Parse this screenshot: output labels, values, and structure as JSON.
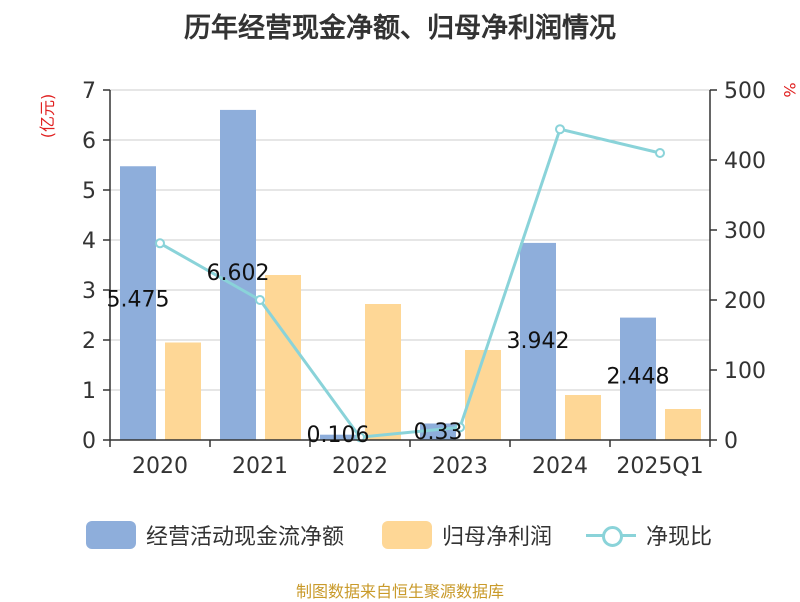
{
  "title": "历年经营现金净额、归母净利润情况",
  "source": "制图数据来自恒生聚源数据库",
  "legend": {
    "cash_label": "经营活动现金流净额",
    "profit_label": "归母净利润",
    "ratio_label": "净现比"
  },
  "colors": {
    "cash": "#8eaedb",
    "profit": "#fed796",
    "ratio": "#8ad3d9",
    "axis_label_red": "#e02020"
  },
  "chart_data": {
    "type": "bar",
    "categories": [
      "2020",
      "2021",
      "2022",
      "2023",
      "2024",
      "2025Q1"
    ],
    "y_left_label": "(亿元)",
    "y_right_label": "%",
    "y_left_range": [
      0,
      7
    ],
    "y_left_ticks": [
      "0",
      "1",
      "2",
      "3",
      "4",
      "5",
      "6",
      "7"
    ],
    "y_right_range": [
      0,
      500
    ],
    "y_right_ticks": [
      "0",
      "100",
      "200",
      "300",
      "400",
      "500"
    ],
    "grid": true,
    "legend_position": "bottom",
    "series": [
      {
        "name": "经营活动现金流净额",
        "type": "bar",
        "axis": "left",
        "values": [
          5.475,
          6.602,
          0.106,
          0.33,
          3.942,
          2.448
        ],
        "labels": [
          "5.475",
          "6.602",
          "0.106",
          "0.33",
          "3.942",
          "2.448"
        ]
      },
      {
        "name": "归母净利润",
        "type": "bar",
        "axis": "left",
        "values": [
          1.95,
          3.3,
          2.72,
          1.8,
          0.9,
          0.62
        ]
      },
      {
        "name": "净现比",
        "type": "line",
        "axis": "right",
        "values": [
          281,
          200,
          4,
          18,
          444,
          410
        ]
      }
    ]
  }
}
